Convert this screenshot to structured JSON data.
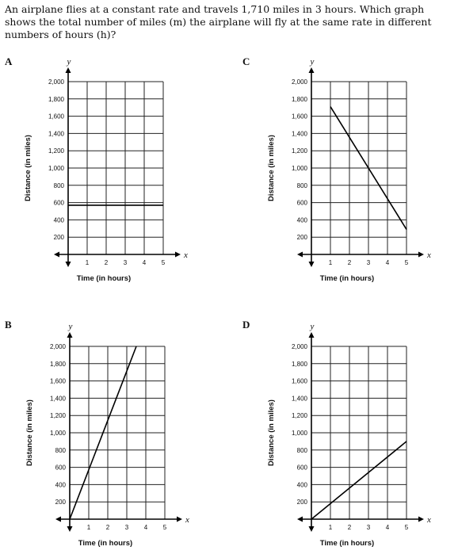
{
  "question": {
    "text": "An airplane flies at a constant rate and travels 1,710 miles in 3 hours. Which graph shows the total number of miles (m) the airplane will fly at the same rate in different numbers of hours (h)?"
  },
  "chart_data": [
    {
      "label": "A",
      "type": "line",
      "x_var": "x",
      "y_var": "y",
      "xlabel": "Time (in hours)",
      "ylabel": "Distance (in miles)",
      "xlim": [
        0,
        5
      ],
      "ylim": [
        0,
        2000
      ],
      "xticks": [
        "1",
        "2",
        "3",
        "4",
        "5"
      ],
      "yticks": [
        "200",
        "400",
        "600",
        "800",
        "1,000",
        "1,200",
        "1,400",
        "1,600",
        "1,800",
        "2,000"
      ],
      "grid": true,
      "series": [
        {
          "x": [
            0,
            5
          ],
          "y": [
            570,
            570
          ]
        }
      ]
    },
    {
      "label": "C",
      "type": "line",
      "x_var": "x",
      "y_var": "y",
      "xlabel": "Time (in hours)",
      "ylabel": "Distance (in miles)",
      "xlim": [
        0,
        5
      ],
      "ylim": [
        0,
        2000
      ],
      "xticks": [
        "1",
        "2",
        "3",
        "4",
        "5"
      ],
      "yticks": [
        "200",
        "400",
        "600",
        "800",
        "1,000",
        "1,200",
        "1,400",
        "1,600",
        "1,800",
        "2,000"
      ],
      "grid": true,
      "series": [
        {
          "x": [
            1,
            5
          ],
          "y": [
            1710,
            290
          ]
        }
      ]
    },
    {
      "label": "B",
      "type": "line",
      "x_var": "x",
      "y_var": "y",
      "xlabel": "Time (in hours)",
      "ylabel": "Distance (in miles)",
      "xlim": [
        0,
        5
      ],
      "ylim": [
        0,
        2000
      ],
      "xticks": [
        "1",
        "2",
        "3",
        "4",
        "5"
      ],
      "yticks": [
        "200",
        "400",
        "600",
        "800",
        "1,000",
        "1,200",
        "1,400",
        "1,600",
        "1,800",
        "2,000"
      ],
      "grid": true,
      "series": [
        {
          "x": [
            0,
            3.5
          ],
          "y": [
            0,
            2000
          ]
        }
      ]
    },
    {
      "label": "D",
      "type": "line",
      "x_var": "x",
      "y_var": "y",
      "xlabel": "Time (in hours)",
      "ylabel": "Distance (in miles)",
      "xlim": [
        0,
        5
      ],
      "ylim": [
        0,
        2000
      ],
      "xticks": [
        "1",
        "2",
        "3",
        "4",
        "5"
      ],
      "yticks": [
        "200",
        "400",
        "600",
        "800",
        "1,000",
        "1,200",
        "1,400",
        "1,600",
        "1,800",
        "2,000"
      ],
      "grid": true,
      "series": [
        {
          "x": [
            0,
            5
          ],
          "y": [
            0,
            900
          ]
        }
      ]
    }
  ]
}
